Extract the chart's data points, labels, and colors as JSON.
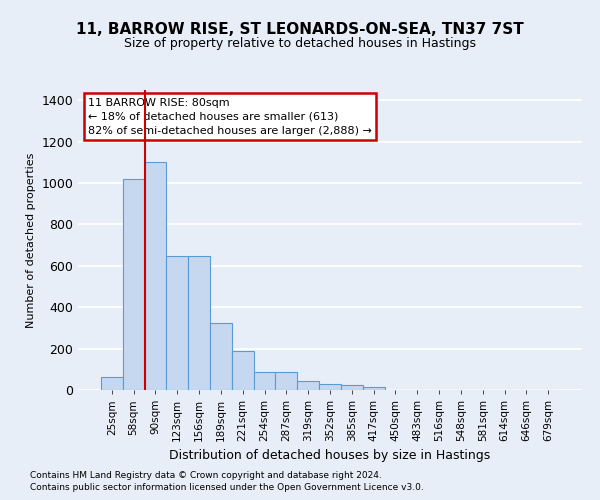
{
  "title": "11, BARROW RISE, ST LEONARDS-ON-SEA, TN37 7ST",
  "subtitle": "Size of property relative to detached houses in Hastings",
  "xlabel": "Distribution of detached houses by size in Hastings",
  "ylabel": "Number of detached properties",
  "categories": [
    "25sqm",
    "58sqm",
    "90sqm",
    "123sqm",
    "156sqm",
    "189sqm",
    "221sqm",
    "254sqm",
    "287sqm",
    "319sqm",
    "352sqm",
    "385sqm",
    "417sqm",
    "450sqm",
    "483sqm",
    "516sqm",
    "548sqm",
    "581sqm",
    "614sqm",
    "646sqm",
    "679sqm"
  ],
  "values": [
    62,
    1020,
    1100,
    650,
    650,
    325,
    190,
    88,
    88,
    45,
    30,
    25,
    15,
    0,
    0,
    0,
    0,
    0,
    0,
    0,
    0
  ],
  "bar_color": "#c5d8f0",
  "bar_edge_color": "#5b9bd5",
  "background_color": "#e8eef8",
  "grid_color": "#ffffff",
  "vline_color": "#cc0000",
  "annotation_text": "11 BARROW RISE: 80sqm\n← 18% of detached houses are smaller (613)\n82% of semi-detached houses are larger (2,888) →",
  "annotation_box_color": "#ffffff",
  "annotation_box_edge_color": "#cc0000",
  "ylim": [
    0,
    1450
  ],
  "yticks": [
    0,
    200,
    400,
    600,
    800,
    1000,
    1200,
    1400
  ],
  "footer1": "Contains HM Land Registry data © Crown copyright and database right 2024.",
  "footer2": "Contains public sector information licensed under the Open Government Licence v3.0."
}
